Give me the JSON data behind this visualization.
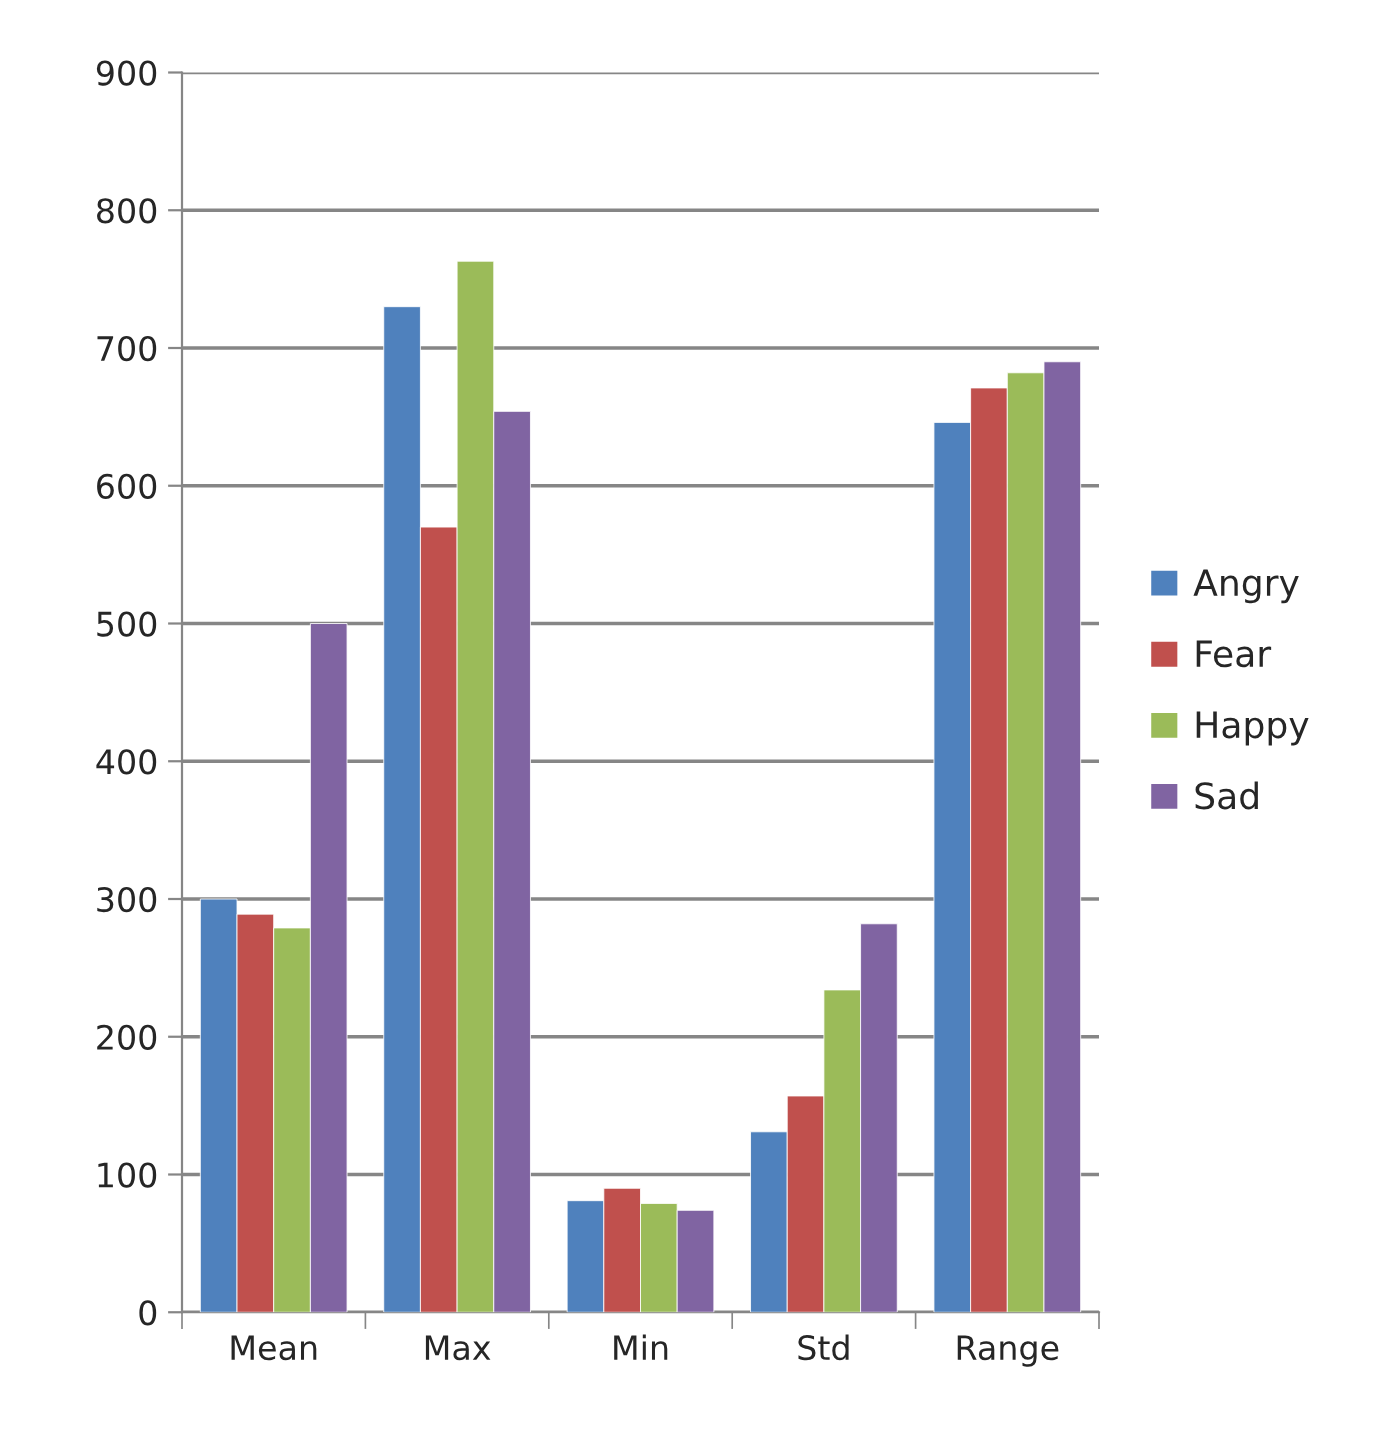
{
  "chart_data": {
    "type": "bar",
    "categories": [
      "Mean",
      "Max",
      "Min",
      "Std",
      "Range"
    ],
    "series": [
      {
        "name": "Angry",
        "color": "#4f81bd",
        "values": [
          300,
          730,
          81,
          131,
          646
        ]
      },
      {
        "name": "Fear",
        "color": "#c0504d",
        "values": [
          289,
          570,
          90,
          157,
          671
        ]
      },
      {
        "name": "Happy",
        "color": "#9bbb59",
        "values": [
          279,
          763,
          79,
          234,
          682
        ]
      },
      {
        "name": "Sad",
        "color": "#8064a2",
        "values": [
          500,
          654,
          74,
          282,
          690
        ]
      }
    ],
    "ylim": [
      0,
      900
    ],
    "yticks": [
      0,
      100,
      200,
      300,
      400,
      500,
      600,
      700,
      800,
      900
    ],
    "grid": "y",
    "legend": "right"
  }
}
